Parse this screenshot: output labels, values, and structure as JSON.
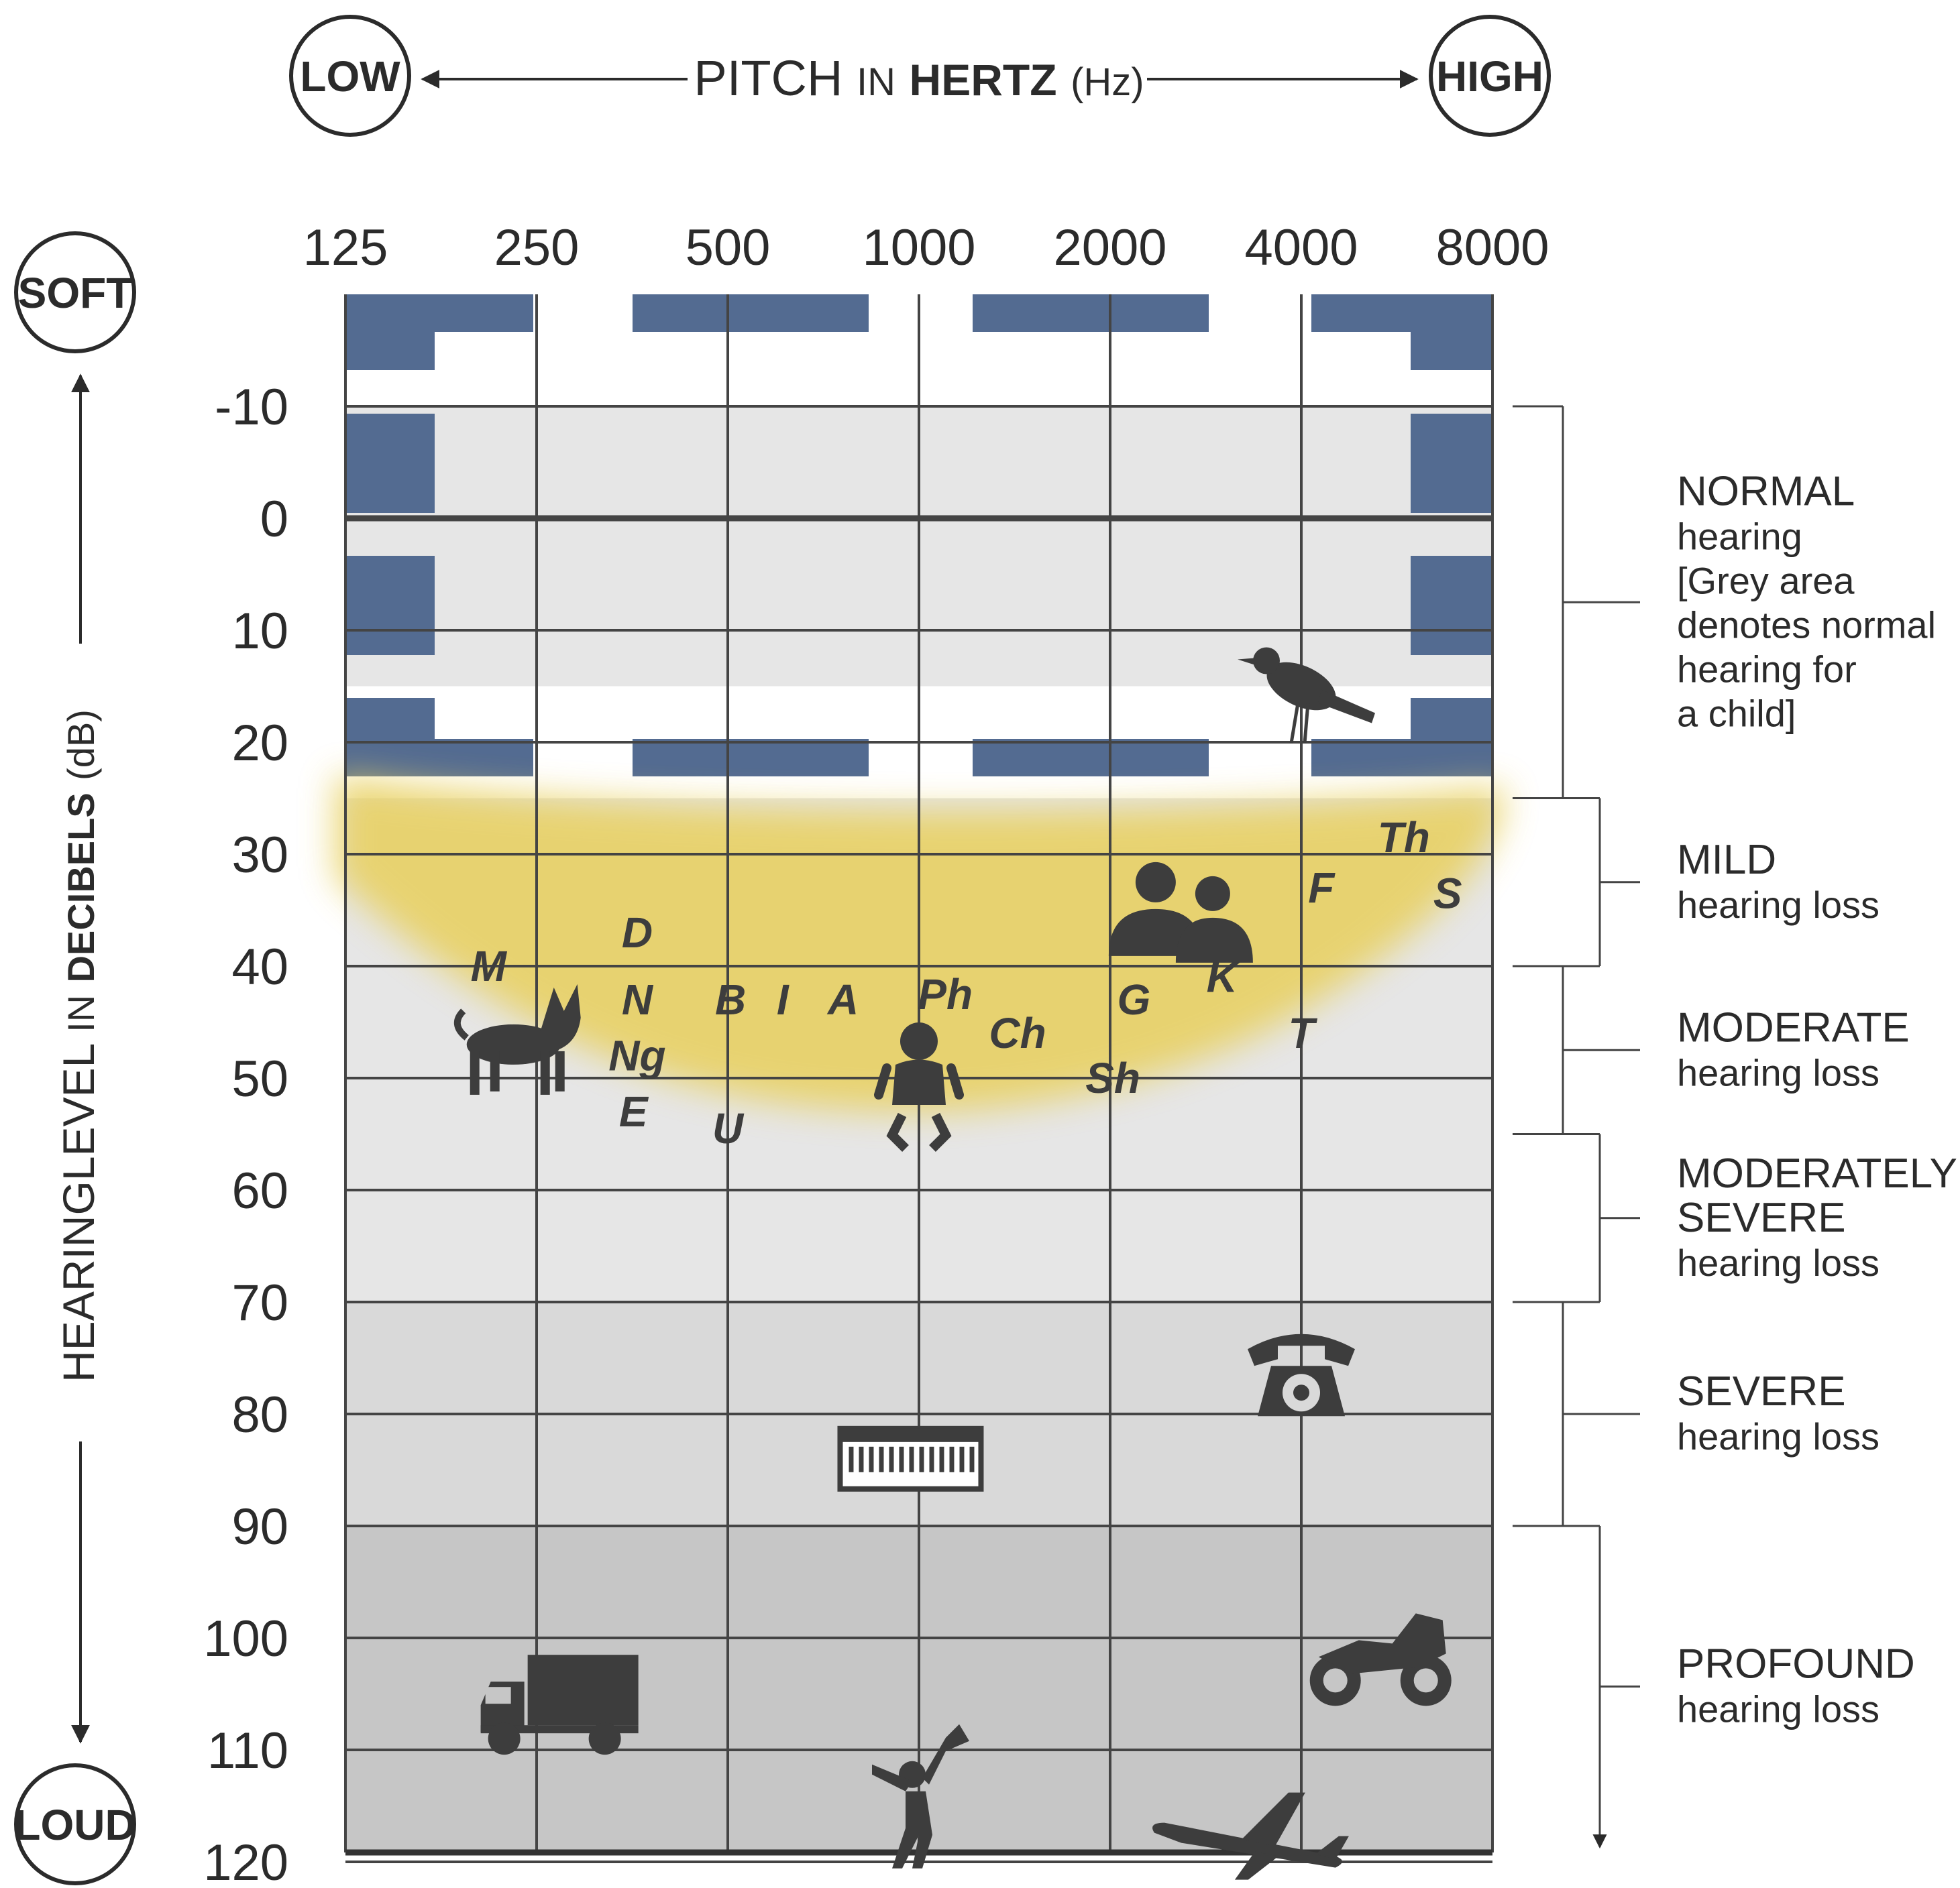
{
  "chart_data": {
    "type": "audiogram",
    "title": "",
    "x_axis": {
      "label_prefix": "PITCH",
      "label_in": "IN",
      "label_main": "HERTZ",
      "label_unit": "(Hz)",
      "low_label": "LOW",
      "high_label": "HIGH",
      "ticks": [
        "125",
        "250",
        "500",
        "1000",
        "2000",
        "4000",
        "8000"
      ],
      "scale": "log2"
    },
    "y_axis": {
      "label_prefix": "HEARINGLEVEL",
      "label_in": "IN",
      "label_main": "DECIBELS",
      "label_unit": "(dB)",
      "soft_label": "SOFT",
      "loud_label": "LOUD",
      "ticks": [
        "-10",
        "0",
        "10",
        "20",
        "30",
        "40",
        "50",
        "60",
        "70",
        "80",
        "90",
        "100",
        "110",
        "120"
      ],
      "ylim": [
        -10,
        120
      ],
      "inverted": true
    },
    "categories": [
      {
        "title": "NORMAL",
        "lines": [
          "hearing",
          "[Grey area",
          "denotes normal",
          "hearing for",
          "a child]"
        ],
        "range": [
          -10,
          25
        ]
      },
      {
        "title": "MILD",
        "lines": [
          "hearing loss"
        ],
        "range": [
          25,
          40
        ]
      },
      {
        "title": "MODERATE",
        "lines": [
          "hearing loss"
        ],
        "range": [
          40,
          55
        ]
      },
      {
        "title": "MODERATELY",
        "lines": [
          "SEVERE",
          "hearing loss"
        ],
        "range": [
          55,
          70
        ]
      },
      {
        "title": "SEVERE",
        "lines": [
          "hearing loss"
        ],
        "range": [
          70,
          90
        ]
      },
      {
        "title": "PROFOUND",
        "lines": [
          "hearing loss"
        ],
        "range": [
          90,
          120
        ]
      }
    ],
    "speech_sounds": [
      {
        "label": "M",
        "freq": 210,
        "db": 40
      },
      {
        "label": "D",
        "freq": 360,
        "db": 37
      },
      {
        "label": "N",
        "freq": 360,
        "db": 43
      },
      {
        "label": "Ng",
        "freq": 360,
        "db": 48
      },
      {
        "label": "E",
        "freq": 355,
        "db": 53
      },
      {
        "label": "U",
        "freq": 500,
        "db": 54.5
      },
      {
        "label": "B",
        "freq": 505,
        "db": 43
      },
      {
        "label": "I",
        "freq": 610,
        "db": 43
      },
      {
        "label": "A",
        "freq": 760,
        "db": 43
      },
      {
        "label": "Ph",
        "freq": 1100,
        "db": 42.5
      },
      {
        "label": "Ch",
        "freq": 1430,
        "db": 46
      },
      {
        "label": "G",
        "freq": 2180,
        "db": 43
      },
      {
        "label": "Sh",
        "freq": 2020,
        "db": 50
      },
      {
        "label": "K",
        "freq": 3000,
        "db": 41
      },
      {
        "label": "T",
        "freq": 4000,
        "db": 46
      },
      {
        "label": "F",
        "freq": 4300,
        "db": 33
      },
      {
        "label": "Th",
        "freq": 5800,
        "db": 28.5
      },
      {
        "label": "S",
        "freq": 6800,
        "db": 33.5
      }
    ],
    "sound_icons": [
      {
        "icon": "bird-icon",
        "freq": 4000,
        "db": 15
      },
      {
        "icon": "people-talking-icon",
        "freq": 2600,
        "db": 37
      },
      {
        "icon": "dog-icon",
        "freq": 230,
        "db": 47
      },
      {
        "icon": "baby-icon",
        "freq": 1000,
        "db": 50
      },
      {
        "icon": "telephone-icon",
        "freq": 4000,
        "db": 76
      },
      {
        "icon": "piano-icon",
        "freq": 970,
        "db": 84
      },
      {
        "icon": "motorcycle-icon",
        "freq": 5300,
        "db": 102
      },
      {
        "icon": "truck-icon",
        "freq": 270,
        "db": 106
      },
      {
        "icon": "chainsaw-icon",
        "freq": 1000,
        "db": 114
      },
      {
        "icon": "airplane-icon",
        "freq": 3300,
        "db": 118
      }
    ],
    "normal_child_range": [
      -10,
      15
    ],
    "speech_banana": true,
    "grid": true,
    "colors": {
      "frame": "#536b91",
      "banana": "#e8d060",
      "grey_light": "#e6e6e6",
      "grey_mid": "#d9d9d9",
      "grey_dark": "#c6c6c6",
      "ink": "#2b2b2b"
    }
  }
}
